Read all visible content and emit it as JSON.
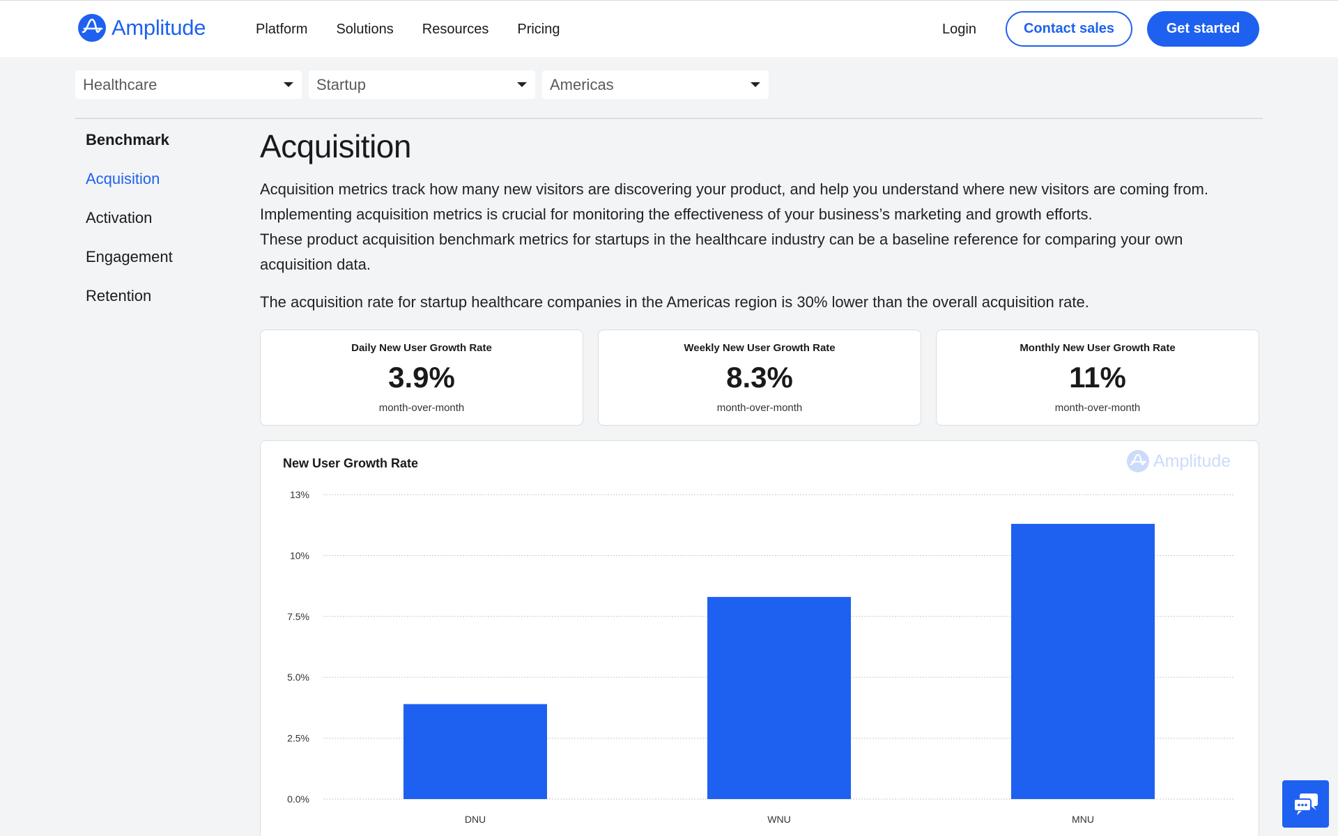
{
  "header": {
    "logo_text": "Amplitude",
    "nav": [
      "Platform",
      "Solutions",
      "Resources",
      "Pricing"
    ],
    "login": "Login",
    "contact_sales": "Contact sales",
    "get_started": "Get started"
  },
  "filters": {
    "industry": "Healthcare",
    "company_size": "Startup",
    "region": "Americas"
  },
  "sidebar": {
    "title": "Benchmark",
    "items": [
      {
        "label": "Acquisition",
        "active": true
      },
      {
        "label": "Activation",
        "active": false
      },
      {
        "label": "Engagement",
        "active": false
      },
      {
        "label": "Retention",
        "active": false
      }
    ]
  },
  "main": {
    "title": "Acquisition",
    "para1_line1": "Acquisition metrics track how many new visitors are discovering your product, and help you understand where new visitors are coming from.",
    "para1_line2": "Implementing acquisition metrics is crucial for monitoring the effectiveness of your business’s marketing and growth efforts.",
    "para1_line3": "These product acquisition benchmark metrics for startups in the healthcare industry can be a baseline reference for comparing your own",
    "para1_line4": "acquisition data.",
    "para2": "The acquisition rate for startup healthcare companies in the Americas region is 30% lower than the overall acquisition rate."
  },
  "stats": [
    {
      "label": "Daily New User Growth Rate",
      "value": "3.9%",
      "sub": "month-over-month"
    },
    {
      "label": "Weekly New User Growth Rate",
      "value": "8.3%",
      "sub": "month-over-month"
    },
    {
      "label": "Monthly New User Growth Rate",
      "value": "11%",
      "sub": "month-over-month"
    }
  ],
  "colors": {
    "brand": "#1e61f0"
  },
  "chart_data": {
    "type": "bar",
    "title": "New User Growth Rate",
    "watermark": "Amplitude",
    "categories": [
      "DNU",
      "WNU",
      "MNU"
    ],
    "values": [
      3.9,
      8.3,
      11.3
    ],
    "yticks": [
      "0.0%",
      "2.5%",
      "5.0%",
      "7.5%",
      "10%",
      "13%"
    ],
    "ylim": [
      0,
      12.5
    ],
    "grid": true,
    "color": "#1e61f0"
  },
  "chat": {
    "icon": "chat-icon"
  }
}
